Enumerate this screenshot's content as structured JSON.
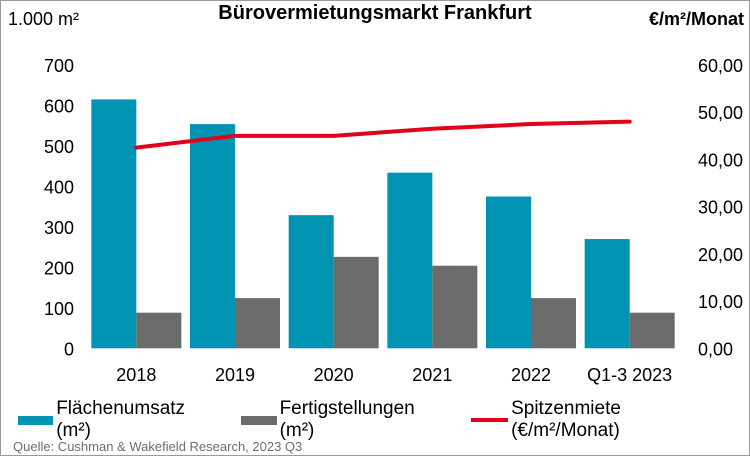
{
  "chart_data": {
    "type": "bar",
    "title": "Bürovermietungsmarkt Frankfurt",
    "ylabel": "1.000 m²",
    "y2label": "€/m²/Monat",
    "categories": [
      "2018",
      "2019",
      "2020",
      "2021",
      "2022",
      "Q1-3 2023"
    ],
    "ylim": [
      0,
      700
    ],
    "y2lim": [
      0,
      60
    ],
    "yticks": [
      "0",
      "100",
      "200",
      "300",
      "400",
      "500",
      "600",
      "700"
    ],
    "y2ticks": [
      "0,00",
      "10,00",
      "20,00",
      "30,00",
      "40,00",
      "50,00",
      "60,00"
    ],
    "grid": false,
    "legend_position": "bottom",
    "series": [
      {
        "name": "Flächenumsatz (m²)",
        "type": "bar",
        "axis": "left",
        "color": "#0093b2",
        "values": [
          615,
          554,
          329,
          434,
          375,
          270
        ]
      },
      {
        "name": "Fertigstellungen (m²)",
        "type": "bar",
        "axis": "left",
        "color": "#6a6b6b",
        "values": [
          88,
          124,
          226,
          204,
          124,
          88
        ]
      },
      {
        "name": "Spitzenmiete (€/m²/Monat)",
        "type": "line",
        "axis": "right",
        "color": "#e2001a",
        "values": [
          42.5,
          45,
          45,
          46.5,
          47.5,
          48
        ]
      }
    ],
    "source": "Quelle: Cushman & Wakefield Research, 2023 Q3"
  }
}
